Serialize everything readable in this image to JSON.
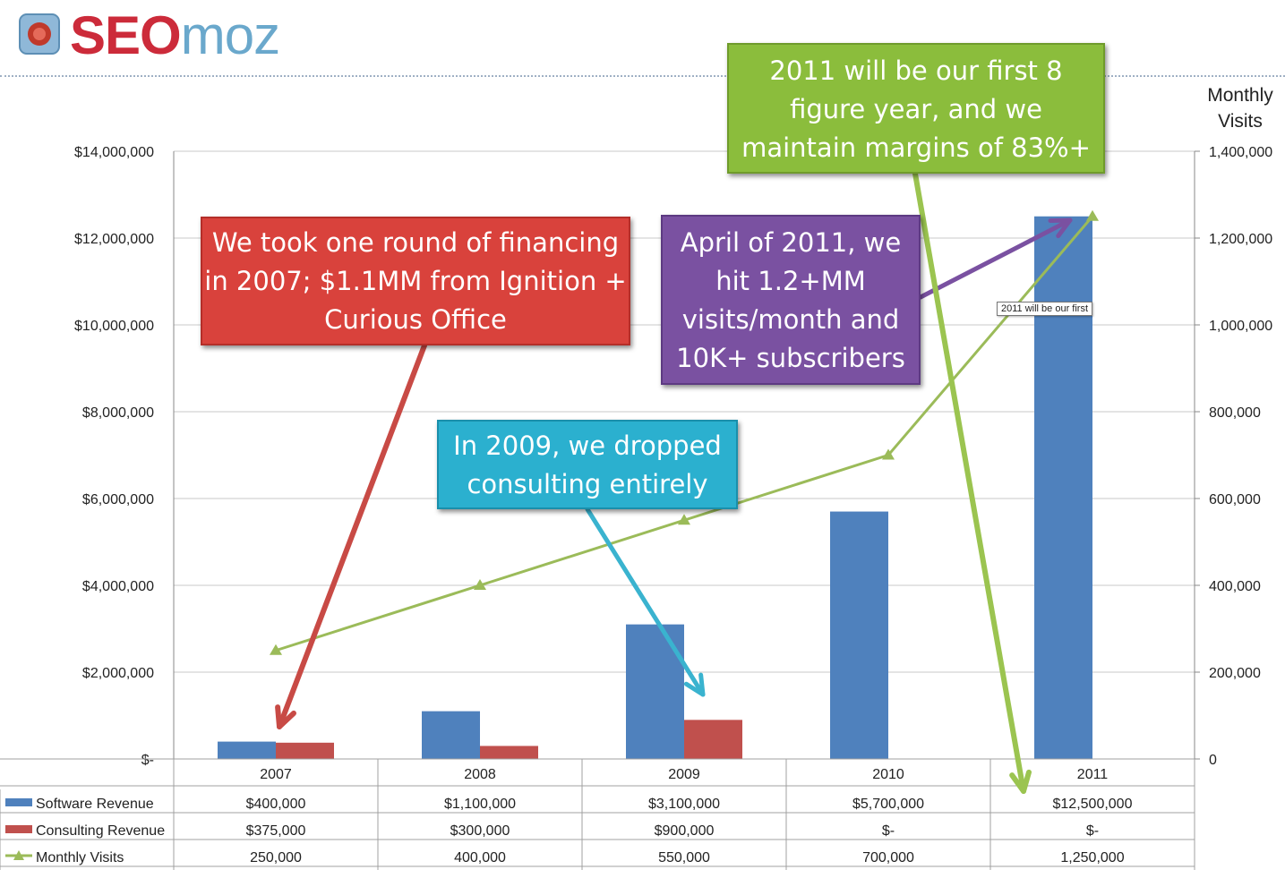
{
  "brand": {
    "logo_seo": "SEO",
    "logo_moz": "moz",
    "accent": "#cc2b3a"
  },
  "right_axis_title": "Monthly Visits",
  "callouts": {
    "financing": "We took one round of financing in 2007; $1.1MM from Ignition + Curious Office",
    "visits": "April of 2011, we hit 1.2+MM visits/month and 10K+ subscribers",
    "consulting": "In 2009, we dropped consulting entirely",
    "figure_year": "2011 will be our first 8 figure year, and we maintain margins of 83%+"
  },
  "tooltip": "2011 will be our first",
  "chart_data": {
    "type": "bar",
    "categories": [
      "2007",
      "2008",
      "2009",
      "2010",
      "2011"
    ],
    "series": [
      {
        "name": "Software Revenue",
        "type": "bar",
        "axis": "left",
        "color": "#4f81bd",
        "values": [
          400000,
          1100000,
          3100000,
          5700000,
          12500000
        ],
        "labels": [
          "$400,000",
          "$1,100,000",
          "$3,100,000",
          "$5,700,000",
          "$12,500,000"
        ]
      },
      {
        "name": "Consulting Revenue",
        "type": "bar",
        "axis": "left",
        "color": "#c0504d",
        "values": [
          375000,
          300000,
          900000,
          0,
          0
        ],
        "labels": [
          "$375,000",
          "$300,000",
          "$900,000",
          "$-",
          "$-"
        ]
      },
      {
        "name": "Monthly Visits",
        "type": "line",
        "axis": "right",
        "color": "#9bbb59",
        "values": [
          250000,
          400000,
          550000,
          700000,
          1250000
        ],
        "labels": [
          "250,000",
          "400,000",
          "550,000",
          "700,000",
          "1,250,000"
        ]
      }
    ],
    "left_axis": {
      "range": [
        0,
        14000000
      ],
      "ticks": [
        "$-",
        "$2,000,000",
        "$4,000,000",
        "$6,000,000",
        "$8,000,000",
        "$10,000,000",
        "$12,000,000",
        "$14,000,000"
      ]
    },
    "right_axis": {
      "title": "Monthly Visits",
      "range": [
        0,
        1400000
      ],
      "ticks": [
        "0",
        "200,000",
        "400,000",
        "600,000",
        "800,000",
        "1,000,000",
        "1,200,000",
        "1,400,000"
      ]
    },
    "grid": true,
    "legend": "data-table"
  }
}
